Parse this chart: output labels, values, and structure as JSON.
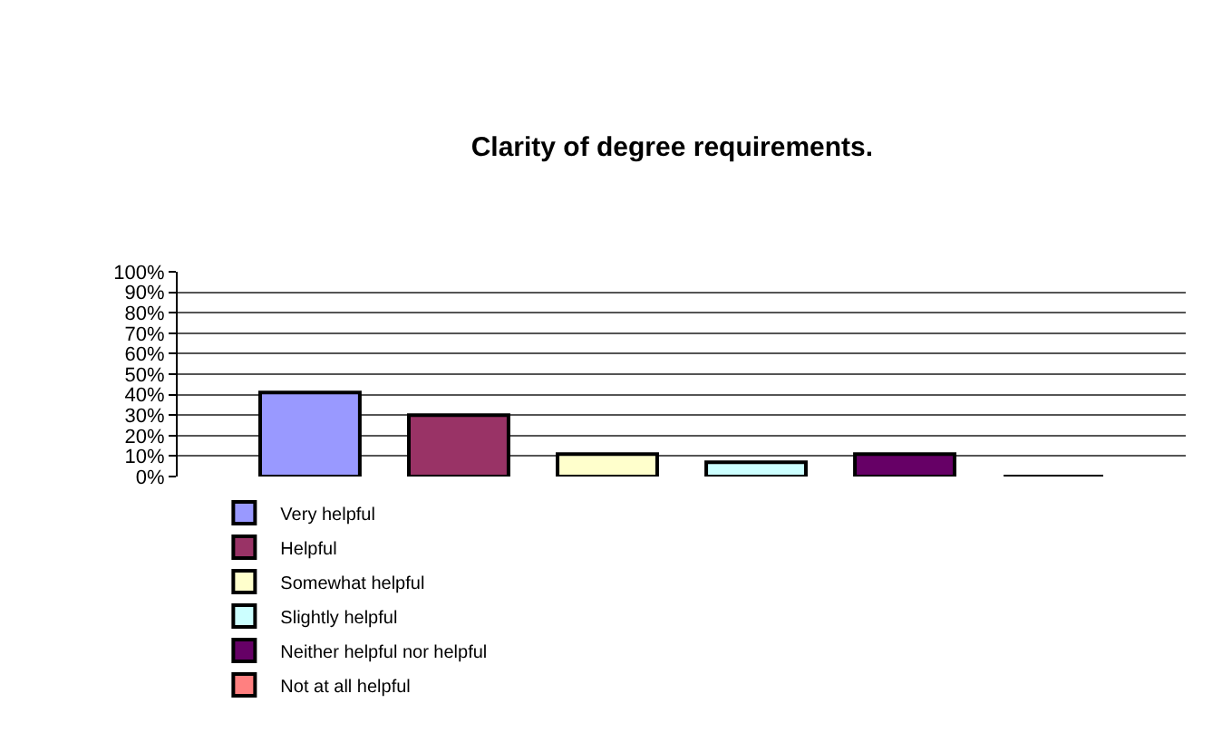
{
  "chart_data": {
    "type": "bar",
    "title": "Clarity of degree requirements.",
    "categories": [
      null
    ],
    "series": [
      {
        "name": "Very helpful",
        "color": "#9999ff",
        "values": [
          41
        ]
      },
      {
        "name": "Helpful",
        "color": "#993366",
        "values": [
          30
        ]
      },
      {
        "name": "Somewhat helpful",
        "color": "#ffffcc",
        "values": [
          11
        ]
      },
      {
        "name": "Slightly helpful",
        "color": "#ccffff",
        "values": [
          7
        ]
      },
      {
        "name": "Neither helpful nor helpful",
        "color": "#660066",
        "values": [
          11
        ]
      },
      {
        "name": "Not at all helpful",
        "color": "#ff8080",
        "values": [
          0
        ]
      }
    ],
    "ylim": [
      0,
      100
    ],
    "yticks": [
      {
        "value": 0,
        "label": "0%"
      },
      {
        "value": 10,
        "label": "10%"
      },
      {
        "value": 20,
        "label": "20%"
      },
      {
        "value": 30,
        "label": "30%"
      },
      {
        "value": 40,
        "label": "40%"
      },
      {
        "value": 50,
        "label": "50%"
      },
      {
        "value": 60,
        "label": "60%"
      },
      {
        "value": 70,
        "label": "70%"
      },
      {
        "value": 80,
        "label": "80%"
      },
      {
        "value": 90,
        "label": "90%"
      },
      {
        "value": 100,
        "label": "100%"
      }
    ],
    "grid": "y",
    "legend": "bottom left"
  }
}
